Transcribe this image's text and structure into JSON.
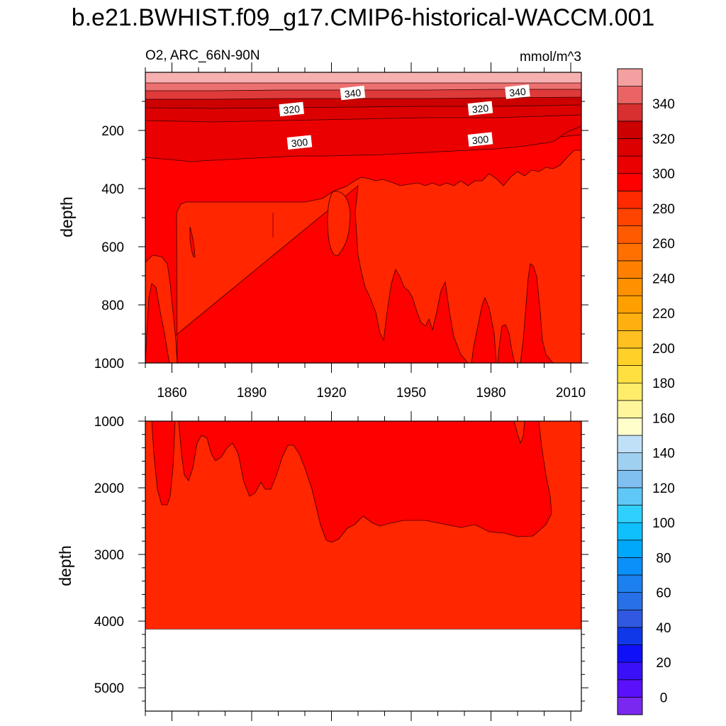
{
  "chart_data": {
    "type": "contour",
    "title": "b.e21.BWHIST.f09_g17.CMIP6-historical-WACCM.001",
    "subtitle_left": "O2, ARC_66N-90N",
    "subtitle_right": "mmol/m^3",
    "xlabel": "",
    "ylabel": "depth",
    "xlim": [
      1850,
      2014
    ],
    "x_ticks": [
      "1860",
      "1890",
      "1920",
      "1950",
      "1980",
      "2010"
    ],
    "x_tick_values": [
      1860,
      1890,
      1920,
      1950,
      1980,
      2010
    ],
    "panels": [
      {
        "name": "upper",
        "ylim": [
          0,
          1000
        ],
        "y_ticks": [
          "200",
          "400",
          "600",
          "800",
          "1000"
        ],
        "y_tick_values": [
          200,
          400,
          600,
          800,
          1000
        ],
        "contour_labels": [
          {
            "text": "340",
            "x": 1928,
            "y": 72
          },
          {
            "text": "340",
            "x": 1990,
            "y": 68
          },
          {
            "text": "320",
            "x": 1905,
            "y": 128
          },
          {
            "text": "320",
            "x": 1976,
            "y": 125
          },
          {
            "text": "300",
            "x": 1908,
            "y": 242
          },
          {
            "text": "300",
            "x": 1976,
            "y": 232
          }
        ]
      },
      {
        "name": "lower",
        "ylim": [
          1000,
          5350
        ],
        "y_ticks": [
          "1000",
          "2000",
          "3000",
          "4000",
          "5000"
        ],
        "y_tick_values": [
          1000,
          2000,
          3000,
          4000,
          5000
        ],
        "ocean_bottom": 4120
      }
    ],
    "colorbar": {
      "labels": [
        "340",
        "320",
        "300",
        "280",
        "260",
        "240",
        "220",
        "200",
        "180",
        "160",
        "140",
        "120",
        "100",
        "80",
        "60",
        "40",
        "20",
        "0"
      ],
      "label_values": [
        340,
        320,
        300,
        280,
        260,
        240,
        220,
        200,
        180,
        160,
        140,
        120,
        100,
        80,
        60,
        40,
        20,
        0
      ],
      "colors": [
        "#7a28f0",
        "#5a10f8",
        "#3a10f8",
        "#1010f8",
        "#1038e8",
        "#3058e0",
        "#2870e8",
        "#1c80f0",
        "#0a90f8",
        "#00a8fc",
        "#10c0fc",
        "#30d0fc",
        "#60c8f8",
        "#80c0f0",
        "#a0d0f0",
        "#c0e0f8",
        "#ffffcc",
        "#fff59a",
        "#ffec6a",
        "#ffe040",
        "#ffd028",
        "#ffc020",
        "#ffb010",
        "#ffa000",
        "#ff9000",
        "#ff8000",
        "#ff7000",
        "#ff5a00",
        "#ff4400",
        "#ff2a00",
        "#ff0000",
        "#ea0000",
        "#dc0000",
        "#cc0000",
        "#d83030",
        "#ea6464",
        "#f4a0a0"
      ]
    },
    "fill_colors": {
      "c360": "#f7b0b0",
      "c350": "#ec7070",
      "c340": "#de3a3a",
      "c330": "#cc0000",
      "c320": "#dd0000",
      "c310": "#ea0000",
      "c300": "#ff0000",
      "c290": "#ff2600",
      "line": "#3a0000"
    }
  }
}
